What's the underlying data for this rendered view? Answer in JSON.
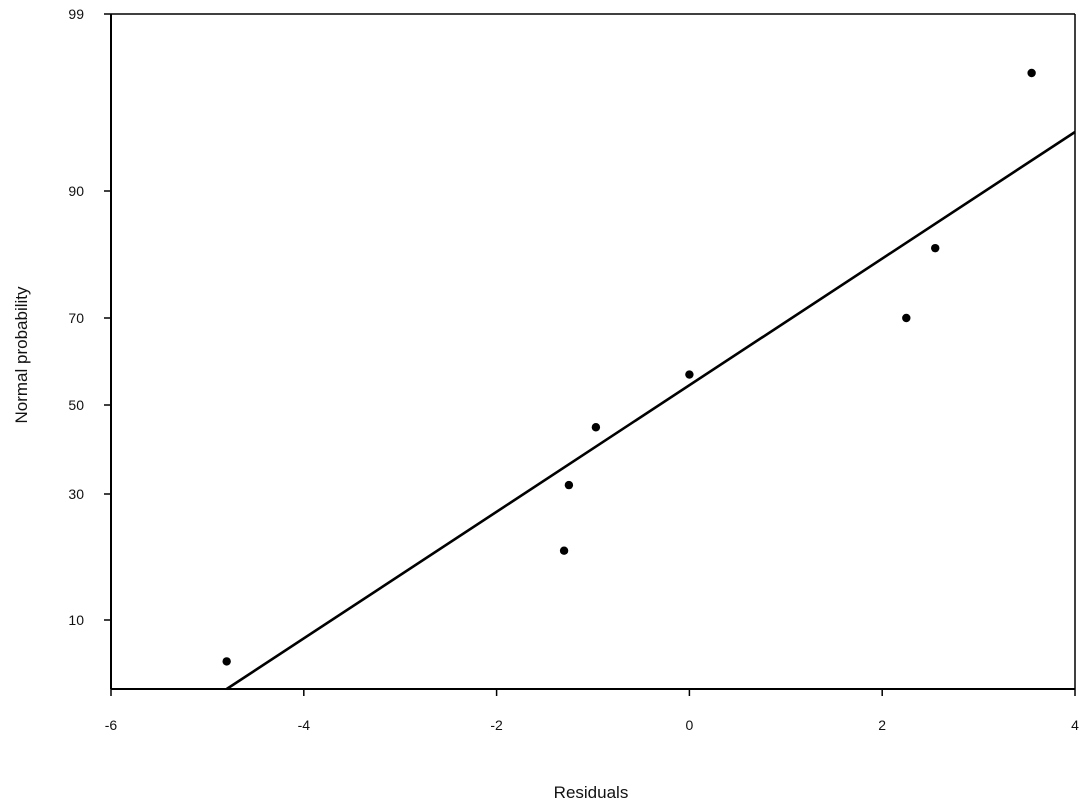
{
  "chart_data": {
    "type": "scatter",
    "title": "",
    "xlabel": "Residuals",
    "ylabel": "Normal probability",
    "xlim": [
      -6,
      4
    ],
    "ylim": [
      0,
      99
    ],
    "xticks": [
      -6,
      -4,
      -2,
      0,
      2,
      4
    ],
    "xtick_labels": [
      "-6",
      "-4",
      "-2",
      "0",
      "2",
      "4"
    ],
    "yticks": [
      10,
      30,
      50,
      70,
      90,
      99
    ],
    "ytick_labels": [
      "10",
      "30",
      "50",
      "70",
      "90",
      "99"
    ],
    "y_scale": "normal-probability",
    "grid": false,
    "series": [
      {
        "values": [
          {
            "x": -4.8,
            "y": 4
          },
          {
            "x": -1.3,
            "y": 21
          },
          {
            "x": -1.25,
            "y": 32
          },
          {
            "x": -0.97,
            "y": 45
          },
          {
            "x": 0.0,
            "y": 57
          },
          {
            "x": 2.25,
            "y": 70
          },
          {
            "x": 2.55,
            "y": 81
          },
          {
            "x": 3.55,
            "y": 96
          }
        ]
      }
    ],
    "fit_line": {
      "type": "line",
      "points": [
        {
          "x": -4.8,
          "y": 0
        },
        {
          "x": 4.0,
          "y": 93
        }
      ]
    },
    "colors": {
      "marker": "#000000",
      "line": "#000000",
      "axis": "#000000"
    }
  }
}
